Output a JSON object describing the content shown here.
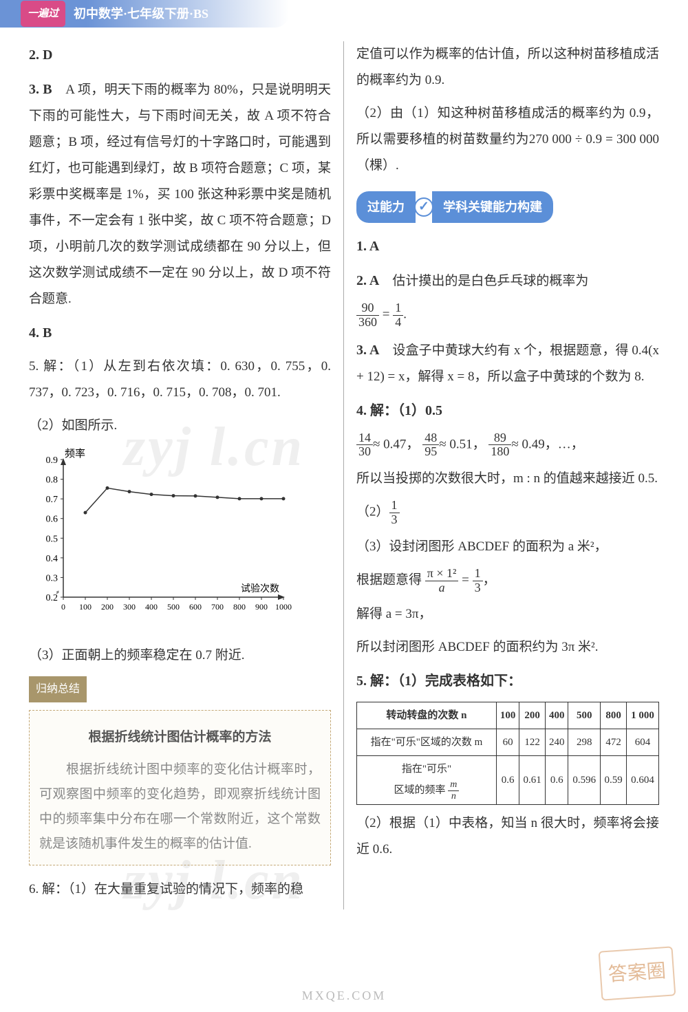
{
  "header": {
    "badge": "一遍过",
    "title": "初中数学·七年级下册·BS"
  },
  "left": {
    "q2": "2. D",
    "q3_label": "3. B",
    "q3_body": "　A 项，明天下雨的概率为 80%，只是说明明天下雨的可能性大，与下雨时间无关，故 A 项不符合题意；B 项，经过有信号灯的十字路口时，可能遇到红灯，也可能遇到绿灯，故 B 项符合题意；C 项，某彩票中奖概率是 1%，买 100 张这种彩票中奖是随机事件，不一定会有 1 张中奖，故 C 项不符合题意；D 项，小明前几次的数学测试成绩都在 90 分以上，但这次数学测试成绩不一定在 90 分以上，故 D 项不符合题意.",
    "q4": "4. B",
    "q5_1": "5. 解：（1）从左到右依次填：0. 630，0. 755，0. 737，0. 723，0. 716，0. 715，0. 708，0. 701.",
    "q5_2": "（2）如图所示.",
    "chart": {
      "type": "line",
      "x_label": "试验次数",
      "y_label": "频率",
      "x_ticks": [
        0,
        100,
        200,
        300,
        400,
        500,
        600,
        700,
        800,
        900,
        1000
      ],
      "y_ticks": [
        0.2,
        0.3,
        0.4,
        0.5,
        0.6,
        0.7,
        0.8,
        0.9
      ],
      "y_break": true,
      "points_x": [
        100,
        200,
        300,
        400,
        500,
        600,
        700,
        800,
        900,
        1000
      ],
      "points_y": [
        0.63,
        0.755,
        0.737,
        0.723,
        0.716,
        0.715,
        0.708,
        0.701,
        0.701,
        0.701
      ],
      "line_color": "#333333",
      "axis_color": "#333333",
      "background": "#ffffff"
    },
    "q5_3": "（3）正面朝上的频率稳定在 0.7 附近.",
    "summary_tab": "归纳总结",
    "summary_heading": "根据折线统计图估计概率的方法",
    "summary_body": "　　根据折线统计图中频率的变化估计概率时，可观察图中频率的变化趋势，即观察折线统计图中的频率集中分布在哪一个常数附近，这个常数就是该随机事件发生的概率的估计值.",
    "q6": "6. 解：（1）在大量重复试验的情况下，频率的稳"
  },
  "right": {
    "cont1": "定值可以作为概率的估计值，所以这种树苗移植成活的概率约为 0.9.",
    "cont2": "（2）由（1）知这种树苗移植成活的概率约为 0.9，所以需要移植的树苗数量约为270 000 ÷ 0.9 = 300 000（棵）.",
    "pill_left": "过能力",
    "pill_right": "学科关键能力构建",
    "q1": "1. A",
    "q2_label": "2. A",
    "q2_body_a": "　估计摸出的是白色乒乓球的概率为",
    "q2_frac_num": "90",
    "q2_frac_den": "360",
    "q2_eq": " = ",
    "q2_frac2_num": "1",
    "q2_frac2_den": "4",
    "q2_end": ".",
    "q3_label": "3. A",
    "q3_body": "　设盒子中黄球大约有 x 个，根据题意，得 0.4(x + 12) = x，解得 x = 8，所以盒子中黄球的个数为 8.",
    "q4_1": "4. 解：（1）0.5",
    "q4_fracs_a_num": "14",
    "q4_fracs_a_den": "30",
    "q4_fracs_a_val": "≈ 0.47，",
    "q4_fracs_b_num": "48",
    "q4_fracs_b_den": "95",
    "q4_fracs_b_val": "≈ 0.51，",
    "q4_fracs_c_num": "89",
    "q4_fracs_c_den": "180",
    "q4_fracs_c_val": "≈ 0.49，…，",
    "q4_tail": "所以当投掷的次数很大时，m : n 的值越来越接近 0.5.",
    "q4_2_pre": "（2）",
    "q4_2_num": "1",
    "q4_2_den": "3",
    "q4_3_a": "（3）设封闭图形 ABCDEF 的面积为 a 米²，",
    "q4_3_b_pre": "根据题意得 ",
    "q4_3_lhs_num": "π × 1²",
    "q4_3_lhs_den": "a",
    "q4_3_eq": " = ",
    "q4_3_rhs_num": "1",
    "q4_3_rhs_den": "3",
    "q4_3_comma": "，",
    "q4_3_c": "解得 a = 3π，",
    "q4_3_d": "所以封闭图形 ABCDEF 的面积约为 3π 米².",
    "q5_1": "5. 解：（1）完成表格如下：",
    "table": {
      "headers": [
        "转动转盘的次数 n",
        "100",
        "200",
        "400",
        "500",
        "800",
        "1 000"
      ],
      "row2_label": "指在\"可乐\"区域的次数 m",
      "row2": [
        "60",
        "122",
        "240",
        "298",
        "472",
        "604"
      ],
      "row3_label_a": "指在\"可乐\"",
      "row3_label_b": "区域的频率 ",
      "row3_frac_num": "m",
      "row3_frac_den": "n",
      "row3": [
        "0.6",
        "0.61",
        "0.6",
        "0.596",
        "0.59",
        "0.604"
      ]
    },
    "q5_2": "（2）根据（1）中表格，知当 n 很大时，频率将会接近 0.6."
  },
  "watermark": "zyj l.cn",
  "corner": "答案圈",
  "footer": "MXQE.COM"
}
